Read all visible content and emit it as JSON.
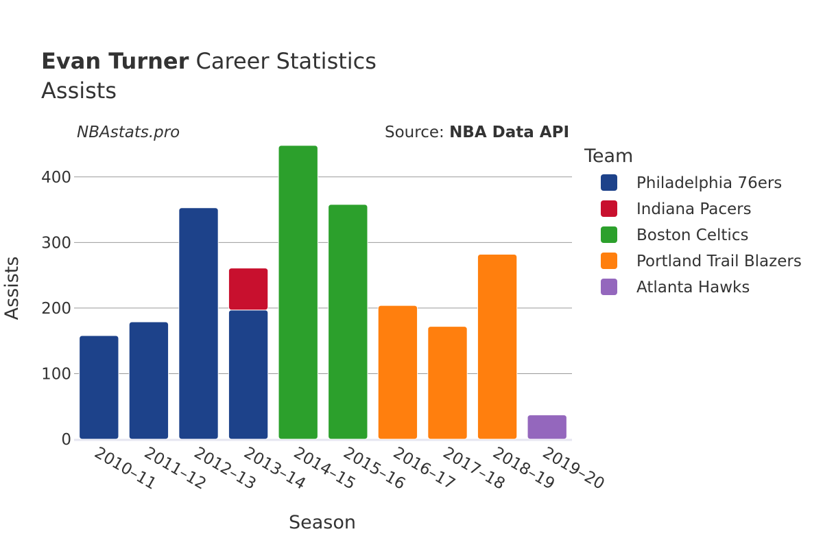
{
  "title": {
    "bold": "Evan Turner",
    "rest": " Career Statistics"
  },
  "subtitle": "Assists",
  "credit_left": "NBAstats.pro",
  "credit_right": {
    "prefix": "Source: ",
    "strong": "NBA Data API"
  },
  "legend_title": "Team",
  "chart_data": {
    "type": "bar",
    "stacked": true,
    "title": "Evan Turner Career Statistics",
    "subtitle": "Assists",
    "xlabel": "Season",
    "ylabel": "Assists",
    "ylim": [
      0,
      450
    ],
    "yticks": [
      0,
      100,
      200,
      300,
      400
    ],
    "categories": [
      "2010–11",
      "2011–12",
      "2012–13",
      "2013–14",
      "2014–15",
      "2015–16",
      "2016–17",
      "2017–18",
      "2018–19",
      "2019–20"
    ],
    "series": [
      {
        "name": "Philadelphia 76ers",
        "color": "#1d428a",
        "values": [
          158,
          179,
          353,
          197,
          0,
          0,
          0,
          0,
          0,
          0
        ]
      },
      {
        "name": "Indiana Pacers",
        "color": "#c8102e",
        "values": [
          0,
          0,
          0,
          64,
          0,
          0,
          0,
          0,
          0,
          0
        ]
      },
      {
        "name": "Boston Celtics",
        "color": "#2ca02c",
        "values": [
          0,
          0,
          0,
          0,
          448,
          358,
          0,
          0,
          0,
          0
        ]
      },
      {
        "name": "Portland Trail Blazers",
        "color": "#ff7f0e",
        "values": [
          0,
          0,
          0,
          0,
          0,
          0,
          204,
          172,
          282,
          0
        ]
      },
      {
        "name": "Atlanta Hawks",
        "color": "#9467bd",
        "values": [
          0,
          0,
          0,
          0,
          0,
          0,
          0,
          0,
          0,
          37
        ]
      }
    ],
    "legend_position": "right"
  }
}
